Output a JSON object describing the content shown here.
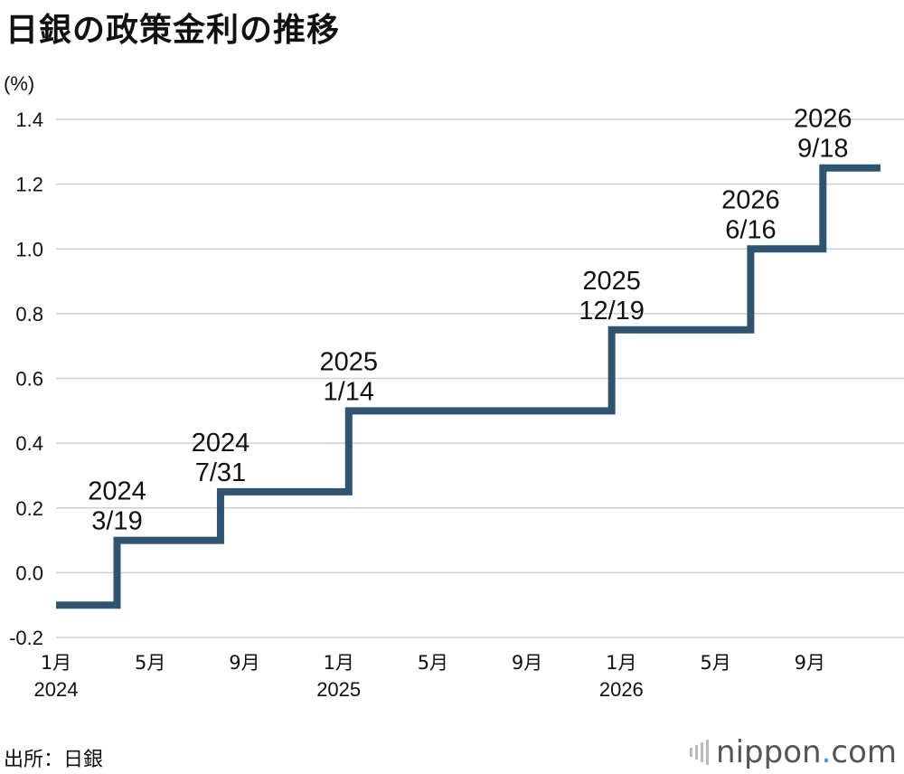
{
  "title": "日銀の政策金利の推移",
  "unit_label": "(%)",
  "source": "出所：日銀",
  "brand": {
    "left": "nippon",
    "dot": ".",
    "right": "com"
  },
  "colors": {
    "line": "#2e5470",
    "grid": "#cfcfcf"
  },
  "chart_data": {
    "type": "line",
    "step": true,
    "ylim": [
      -0.2,
      1.4
    ],
    "yticks": [
      1.4,
      1.2,
      1.0,
      0.8,
      0.6,
      0.4,
      0.2,
      0.0,
      -0.2
    ],
    "ytick_labels": [
      "1.4",
      "1.2",
      "1.0",
      "0.8",
      "0.6",
      "0.4",
      "0.2",
      "0.0",
      "-0.2"
    ],
    "xlim": [
      "2024-01",
      "2026-12"
    ],
    "xticks": [
      {
        "date": "2024-01",
        "label": "1月",
        "year": "2024"
      },
      {
        "date": "2024-05",
        "label": "5月",
        "year": ""
      },
      {
        "date": "2024-09",
        "label": "9月",
        "year": ""
      },
      {
        "date": "2025-01",
        "label": "1月",
        "year": "2025"
      },
      {
        "date": "2025-05",
        "label": "5月",
        "year": ""
      },
      {
        "date": "2025-09",
        "label": "9月",
        "year": ""
      },
      {
        "date": "2026-01",
        "label": "1月",
        "year": "2026"
      },
      {
        "date": "2026-05",
        "label": "5月",
        "year": ""
      },
      {
        "date": "2026-09",
        "label": "9月",
        "year": ""
      }
    ],
    "series": [
      {
        "points": [
          {
            "date": "2024-01",
            "value": -0.1
          },
          {
            "date": "2024-03-19",
            "value": 0.1
          },
          {
            "date": "2024-07-31",
            "value": 0.25
          },
          {
            "date": "2025-01-14",
            "value": 0.5
          },
          {
            "date": "2025-12-19",
            "value": 0.75
          },
          {
            "date": "2026-06-16",
            "value": 1.0
          },
          {
            "date": "2026-09-18",
            "value": 1.25
          },
          {
            "date": "2026-12",
            "value": 1.25
          }
        ]
      }
    ],
    "annotations": [
      {
        "date": "2024-03-19",
        "value": 0.1,
        "line1": "2024",
        "line2": "3/19"
      },
      {
        "date": "2024-07-31",
        "value": 0.25,
        "line1": "2024",
        "line2": "7/31"
      },
      {
        "date": "2025-01-14",
        "value": 0.5,
        "line1": "2025",
        "line2": "1/14"
      },
      {
        "date": "2025-12-19",
        "value": 0.75,
        "line1": "2025",
        "line2": "12/19"
      },
      {
        "date": "2026-06-16",
        "value": 1.0,
        "line1": "2026",
        "line2": "6/16"
      },
      {
        "date": "2026-09-18",
        "value": 1.25,
        "line1": "2026",
        "line2": "9/18"
      }
    ]
  }
}
